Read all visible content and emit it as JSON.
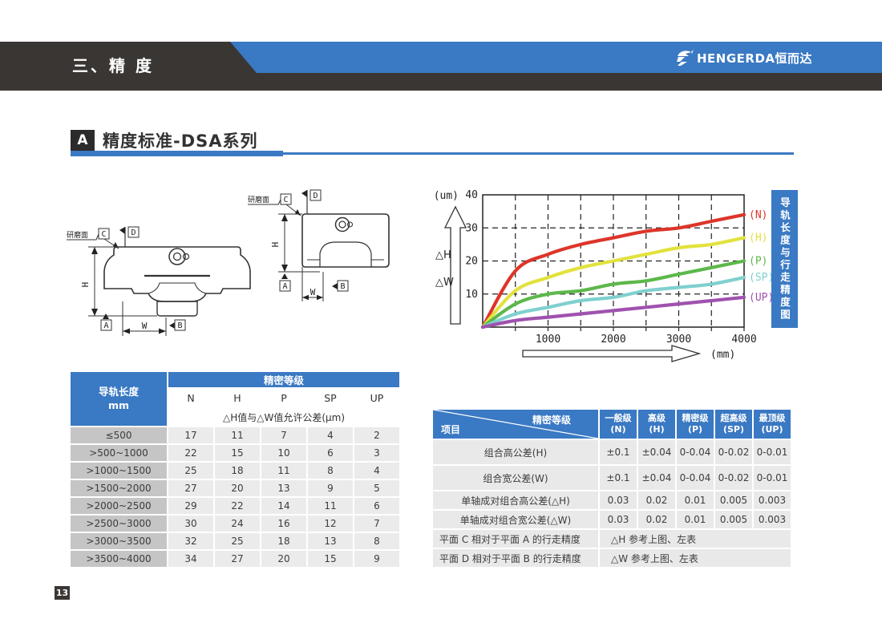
{
  "colors": {
    "accent_blue": "#3a79c3",
    "dark_bar": "#3a3634",
    "badge_black": "#2b2b2b",
    "table_label_gray": "#c5c5c5",
    "table_cell_gray": "#ebebeb",
    "table2_cell_gray": "#e9e9e9"
  },
  "header": {
    "chapter_title": "三、精 度",
    "brand_text": "HENGERDA恒而达"
  },
  "section": {
    "badge": "A",
    "title": "精度标准-DSA系列"
  },
  "diagrams": {
    "surface": "研磨面",
    "a": "A",
    "b": "B",
    "c": "C",
    "d": "D",
    "h": "H",
    "w": "W"
  },
  "chart_panel_label": "导轨长度与行走精度图",
  "chart_data": {
    "type": "line",
    "title": "导轨长度与行走精度图",
    "xlabel": "(mm)",
    "ylabel": "(um)",
    "x": [
      0,
      500,
      1000,
      1500,
      2000,
      2500,
      3000,
      3500,
      4000
    ],
    "series": [
      {
        "name": "(N)",
        "color": "#dd3529",
        "values": [
          0,
          17,
          22,
          25,
          27,
          29,
          30,
          32,
          34
        ]
      },
      {
        "name": "(H)",
        "color": "#e2e23e",
        "values": [
          0,
          11,
          15,
          18,
          20,
          22,
          24,
          25,
          27
        ]
      },
      {
        "name": "(P)",
        "color": "#5cb84a",
        "values": [
          0,
          7,
          10,
          11,
          13,
          14,
          16,
          18,
          20
        ]
      },
      {
        "name": "(SP)",
        "color": "#7fd0cf",
        "values": [
          0,
          4,
          6,
          8,
          9,
          11,
          12,
          13,
          15
        ]
      },
      {
        "name": "(UP)",
        "color": "#9f52ae",
        "values": [
          0,
          2,
          3,
          4,
          5,
          6,
          7,
          8,
          9
        ]
      }
    ],
    "xlim": [
      0,
      4000
    ],
    "ylim": [
      0,
      40
    ],
    "xticks": [
      1000,
      2000,
      3000,
      4000
    ],
    "yticks": [
      10,
      20,
      30,
      40
    ],
    "y_axis_arrow_labels": [
      "△H",
      "△W"
    ],
    "grid": "dashed",
    "legend_position": "right-of-curve-ends"
  },
  "table1": {
    "corner_header": "导轨长度\nmm",
    "group_header": "精密等级",
    "grade_columns": [
      "N",
      "H",
      "P",
      "SP",
      "UP"
    ],
    "tolerance_note": "△H值与△W值允许公差(μm)",
    "rows": [
      {
        "label": "≤500",
        "values": [
          "17",
          "11",
          "7",
          "4",
          "2"
        ]
      },
      {
        "label": ">500~1000",
        "values": [
          "22",
          "15",
          "10",
          "6",
          "3"
        ]
      },
      {
        "label": ">1000~1500",
        "values": [
          "25",
          "18",
          "11",
          "8",
          "4"
        ]
      },
      {
        "label": ">1500~2000",
        "values": [
          "27",
          "20",
          "13",
          "9",
          "5"
        ]
      },
      {
        "label": ">2000~2500",
        "values": [
          "29",
          "22",
          "14",
          "11",
          "6"
        ]
      },
      {
        "label": ">2500~3000",
        "values": [
          "30",
          "24",
          "16",
          "12",
          "7"
        ]
      },
      {
        "label": ">3000~3500",
        "values": [
          "32",
          "25",
          "18",
          "13",
          "8"
        ]
      },
      {
        "label": ">3500~4000",
        "values": [
          "34",
          "27",
          "20",
          "15",
          "9"
        ]
      }
    ]
  },
  "table2": {
    "diag_top": "精密等级",
    "diag_bottom": "项目",
    "columns": [
      "一般级\n(N)",
      "高级\n(H)",
      "精密级\n(P)",
      "超高级\n(SP)",
      "最顶级\n(UP)"
    ],
    "rows": [
      {
        "label": "组合高公差(H)",
        "values": [
          "±0.1",
          "±0.04",
          "0-0.04",
          "0-0.02",
          "0-0.01"
        ],
        "tall": true
      },
      {
        "label": "组合宽公差(W)",
        "values": [
          "±0.1",
          "±0.04",
          "0-0.04",
          "0-0.02",
          "0-0.01"
        ],
        "tall": true
      },
      {
        "label": "单轴成对组合高公差(△H)",
        "values": [
          "0.03",
          "0.02",
          "0.01",
          "0.005",
          "0.003"
        ]
      },
      {
        "label": "单轴成对组合宽公差(△W)",
        "values": [
          "0.03",
          "0.02",
          "0.01",
          "0.005",
          "0.003"
        ]
      },
      {
        "label": "平面 C 相对于平面 A 的行走精度",
        "span": "△H 参考上图、左表"
      },
      {
        "label": "平面 D 相对于平面 B 的行走精度",
        "span": "△W 参考上图、左表"
      }
    ]
  },
  "page_number": "13"
}
